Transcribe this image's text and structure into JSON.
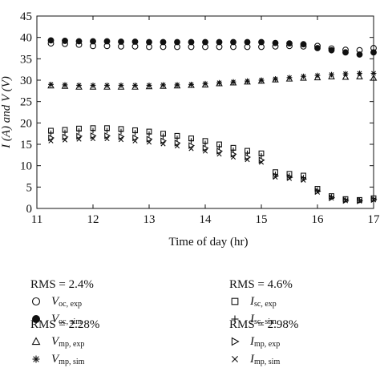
{
  "chart_data": {
    "type": "scatter",
    "xlabel": "Time of day (hr)",
    "ylabel": "I (A) and V (V)",
    "xlim": [
      11,
      17
    ],
    "ylim": [
      0,
      45
    ],
    "x_ticks": [
      "11",
      "12",
      "13",
      "14",
      "15",
      "16",
      "17"
    ],
    "y_ticks": [
      "0",
      "5",
      "10",
      "15",
      "20",
      "25",
      "30",
      "35",
      "40",
      "45"
    ],
    "grid": false,
    "x": [
      11.25,
      11.5,
      11.75,
      12.0,
      12.25,
      12.5,
      12.75,
      13.0,
      13.25,
      13.5,
      13.75,
      14.0,
      14.25,
      14.5,
      14.75,
      15.0,
      15.25,
      15.5,
      15.75,
      16.0,
      16.25,
      16.5,
      16.75,
      17.0
    ],
    "series": [
      {
        "name": "V_oc, exp",
        "marker": "circle-open",
        "values": [
          38.6,
          38.5,
          38.3,
          38.0,
          38.0,
          37.9,
          37.9,
          37.8,
          37.8,
          37.8,
          37.8,
          37.8,
          37.8,
          37.8,
          37.8,
          37.8,
          37.9,
          38.0,
          37.9,
          38.0,
          37.4,
          37.1,
          37.0,
          37.5
        ]
      },
      {
        "name": "V_oc, sim",
        "marker": "circle-filled",
        "values": [
          39.3,
          39.2,
          39.1,
          39.1,
          39.1,
          39.0,
          39.0,
          38.9,
          38.9,
          38.9,
          38.9,
          38.9,
          38.9,
          38.9,
          38.9,
          38.9,
          38.7,
          38.6,
          38.4,
          37.5,
          37.0,
          36.5,
          36.0,
          36.5
        ]
      },
      {
        "name": "V_mp, exp",
        "marker": "triangle-open",
        "values": [
          28.7,
          28.6,
          28.4,
          28.4,
          28.4,
          28.4,
          28.4,
          28.5,
          28.6,
          28.7,
          28.8,
          28.9,
          29.2,
          29.4,
          29.6,
          29.8,
          30.1,
          30.3,
          30.5,
          30.6,
          30.8,
          30.7,
          30.8,
          30.5
        ]
      },
      {
        "name": "V_mp, sim",
        "marker": "asterisk",
        "values": [
          29.0,
          28.9,
          28.8,
          28.8,
          28.8,
          28.8,
          28.8,
          28.8,
          28.9,
          28.9,
          29.0,
          29.2,
          29.4,
          29.6,
          29.8,
          30.0,
          30.3,
          30.6,
          30.9,
          31.1,
          31.3,
          31.5,
          31.6,
          31.6
        ]
      },
      {
        "name": "I_sc, exp",
        "marker": "square-open",
        "values": [
          18.2,
          18.4,
          18.7,
          18.8,
          18.8,
          18.6,
          18.3,
          18.0,
          17.5,
          17.0,
          16.4,
          15.8,
          15.0,
          14.2,
          13.5,
          12.9,
          8.5,
          8.1,
          7.7,
          4.6,
          2.9,
          2.2,
          2.0,
          2.4
        ]
      },
      {
        "name": "I_sc, sim",
        "marker": "plus",
        "values": [
          17.6,
          17.8,
          18.1,
          18.2,
          18.2,
          18.0,
          17.7,
          17.4,
          16.9,
          16.4,
          15.8,
          15.2,
          14.4,
          13.6,
          12.9,
          12.3,
          8.0,
          7.6,
          7.2,
          4.3,
          2.7,
          2.1,
          1.9,
          2.3
        ]
      },
      {
        "name": "I_mp, exp",
        "marker": "triangle-right-open",
        "values": [
          16.5,
          16.7,
          16.9,
          17.0,
          17.0,
          16.8,
          16.5,
          16.2,
          15.8,
          15.3,
          14.7,
          14.1,
          13.4,
          12.7,
          12.0,
          11.3,
          7.6,
          7.3,
          6.9,
          4.0,
          2.5,
          1.9,
          1.8,
          2.1
        ]
      },
      {
        "name": "I_mp, sim",
        "marker": "cross",
        "values": [
          15.8,
          16.0,
          16.2,
          16.3,
          16.3,
          16.1,
          15.8,
          15.5,
          15.1,
          14.6,
          14.0,
          13.4,
          12.7,
          12.0,
          11.4,
          10.8,
          7.3,
          7.0,
          6.6,
          3.8,
          2.4,
          1.8,
          1.7,
          2.0
        ]
      }
    ]
  },
  "legend": {
    "group1": {
      "rms": "RMS = 2.4%",
      "items": [
        {
          "var": "V",
          "sub": "oc, exp",
          "marker": "circle-open"
        },
        {
          "var": "V",
          "sub": "oc, sim",
          "marker": "circle-filled"
        }
      ]
    },
    "group2": {
      "rms": "RMS = 4.6%",
      "items": [
        {
          "var": "I",
          "sub": "sc, exp",
          "marker": "square-open"
        },
        {
          "var": "I",
          "sub": "sc, sim",
          "marker": "plus"
        }
      ]
    },
    "group3": {
      "rms": "RMS = 2.28%",
      "items": [
        {
          "var": "V",
          "sub": "mp, exp",
          "marker": "triangle-open"
        },
        {
          "var": "V",
          "sub": "mp, sim",
          "marker": "asterisk"
        }
      ]
    },
    "group4": {
      "rms": "RMS = 2.98%",
      "items": [
        {
          "var": "I",
          "sub": "mp, exp",
          "marker": "triangle-right-open"
        },
        {
          "var": "I",
          "sub": "mp, sim",
          "marker": "cross"
        }
      ]
    }
  }
}
